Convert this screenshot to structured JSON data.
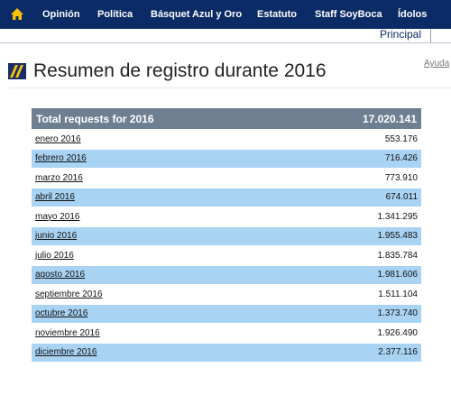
{
  "nav": {
    "items": [
      "Opinión",
      "Política",
      "Básquet Azul y Oro",
      "Estatuto",
      "Staff SoyBoca",
      "Ídolos"
    ],
    "tab": "Principal"
  },
  "header": {
    "title": "Resumen de registro durante 2016",
    "help": "Ayuda"
  },
  "table": {
    "header": [
      "Total requests for 2016",
      "17.020.141"
    ],
    "rows": [
      [
        "enero 2016",
        "553.176"
      ],
      [
        "febrero 2016",
        "716.426"
      ],
      [
        "marzo 2016",
        "773.910"
      ],
      [
        "abril 2016",
        "674.011"
      ],
      [
        "mayo 2016",
        "1.341.295"
      ],
      [
        "junio 2016",
        "1.955.483"
      ],
      [
        "julio 2016",
        "1.835.784"
      ],
      [
        "agosto 2016",
        "1.981.606"
      ],
      [
        "septiembre 2016",
        "1.511.104"
      ],
      [
        "octubre 2016",
        "1.373.740"
      ],
      [
        "noviembre 2016",
        "1.926.490"
      ],
      [
        "diciembre 2016",
        "2.377.116"
      ]
    ]
  }
}
